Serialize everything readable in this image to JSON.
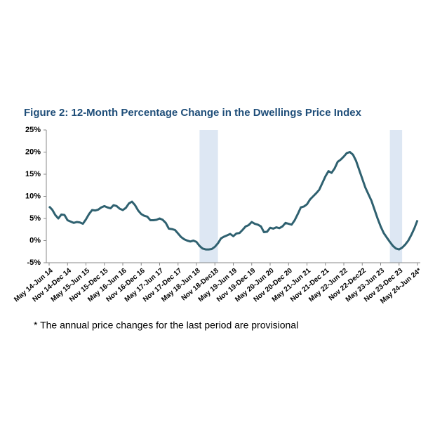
{
  "chart_data": {
    "type": "line",
    "title": "Figure 2: 12-Month Percentage Change in the Dwellings Price Index",
    "footnote": "* The annual price changes for the last period are provisional",
    "categories": [
      "May 14-Jun 14",
      null,
      null,
      null,
      null,
      null,
      "Nov 14-Dec 14",
      null,
      null,
      null,
      null,
      null,
      "May 15-Jun 15",
      null,
      null,
      null,
      null,
      null,
      "Nov 15-Dec 15",
      null,
      null,
      null,
      null,
      null,
      "May 16-Jun 16",
      null,
      null,
      null,
      null,
      null,
      "Nov 16-Dec 16",
      null,
      null,
      null,
      null,
      null,
      "May 17-Jun 17",
      null,
      null,
      null,
      null,
      null,
      "Nov 17-Dec 17",
      null,
      null,
      null,
      null,
      null,
      "May 18-Jun 18",
      null,
      null,
      null,
      null,
      null,
      "Nov 18-Dec18",
      null,
      null,
      null,
      null,
      null,
      "May 19-Jun 19",
      null,
      null,
      null,
      null,
      null,
      "Nov 19-Dec 19",
      null,
      null,
      null,
      null,
      null,
      "May 20-Jun 20",
      null,
      null,
      null,
      null,
      null,
      "Nov 20-Dec 20",
      null,
      null,
      null,
      null,
      null,
      "May 21-Jun 21",
      null,
      null,
      null,
      null,
      null,
      "Nov 21-Dec 21",
      null,
      null,
      null,
      null,
      null,
      "May 22-Jun 22",
      null,
      null,
      null,
      null,
      null,
      "Nov 22-Dec22",
      null,
      null,
      null,
      null,
      null,
      "May 23-Jun 23",
      null,
      null,
      null,
      null,
      null,
      "Nov 23-Dec 23",
      null,
      null,
      null,
      null,
      null,
      "May 24-Jun 24*"
    ],
    "series": [
      {
        "color": "#2f6170",
        "values": [
          7.7,
          7.0,
          5.8,
          5.0,
          5.9,
          5.8,
          4.6,
          4.3,
          4.0,
          4.2,
          4.1,
          3.8,
          4.8,
          6.0,
          6.9,
          6.8,
          7.0,
          7.5,
          7.8,
          7.5,
          7.3,
          8.0,
          7.8,
          7.2,
          6.9,
          7.4,
          8.4,
          8.8,
          8.0,
          6.8,
          6.0,
          5.6,
          5.4,
          4.6,
          4.6,
          4.7,
          5.0,
          4.7,
          4.0,
          2.7,
          2.6,
          2.4,
          1.6,
          0.8,
          0.3,
          0.0,
          -0.2,
          0.0,
          -0.3,
          -1.2,
          -1.8,
          -2.0,
          -2.0,
          -1.9,
          -1.4,
          -0.6,
          0.5,
          0.9,
          1.2,
          1.5,
          1.0,
          1.6,
          1.7,
          2.4,
          3.2,
          3.5,
          4.2,
          3.8,
          3.6,
          3.2,
          1.9,
          2.0,
          2.9,
          2.7,
          3.0,
          2.8,
          3.2,
          4.0,
          3.8,
          3.6,
          4.6,
          6.0,
          7.5,
          7.7,
          8.2,
          9.3,
          10.0,
          10.7,
          11.5,
          13.0,
          14.5,
          15.7,
          15.3,
          16.3,
          17.8,
          18.3,
          19.0,
          19.8,
          20.0,
          19.4,
          18.0,
          16.0,
          14.0,
          12.0,
          10.5,
          9.0,
          7.0,
          5.0,
          3.2,
          1.7,
          0.7,
          -0.3,
          -1.2,
          -1.8,
          -2.0,
          -1.6,
          -0.9,
          0.0,
          1.3,
          2.8,
          4.6
        ]
      }
    ],
    "ylim": [
      -5,
      25
    ],
    "yticks": [
      {
        "value": -5,
        "label": "-5%"
      },
      {
        "value": 0,
        "label": "0%"
      },
      {
        "value": 5,
        "label": "5%"
      },
      {
        "value": 10,
        "label": "10%"
      },
      {
        "value": 15,
        "label": "15%"
      },
      {
        "value": 20,
        "label": "20%"
      },
      {
        "value": 25,
        "label": "25%"
      }
    ],
    "shaded": [
      {
        "from": 49,
        "to": 55
      },
      {
        "from": 111,
        "to": 115
      }
    ],
    "shade_color": "#dde7f3"
  }
}
